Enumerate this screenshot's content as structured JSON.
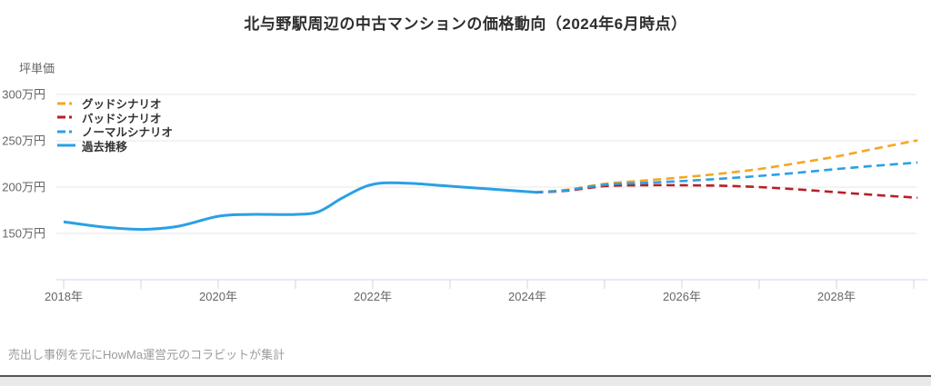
{
  "page": {
    "title": "北与野駅周辺の中古マンションの価格動向（2024年6月時点）",
    "source_note": "売出し事例を元にHowMa運営元のコラビットが集計"
  },
  "chart_data": {
    "type": "line",
    "title": "北与野駅周辺の中古マンションの価格動向（2024年6月時点）",
    "xlabel": "",
    "ylabel": "坪単価",
    "unit": "万円",
    "ylim": [
      150,
      300
    ],
    "xlim": [
      2018,
      2029
    ],
    "grid": "horizontal",
    "legend_position": "top-left",
    "y_ticks": [
      {
        "value": 300,
        "label": "300万円"
      },
      {
        "value": 250,
        "label": "250万円"
      },
      {
        "value": 200,
        "label": "200万円"
      },
      {
        "value": 150,
        "label": "150万円"
      }
    ],
    "x_ticks": [
      {
        "value": 2018,
        "label": "2018年"
      },
      {
        "value": 2019,
        "label": ""
      },
      {
        "value": 2020,
        "label": "2020年"
      },
      {
        "value": 2021,
        "label": ""
      },
      {
        "value": 2022,
        "label": "2022年"
      },
      {
        "value": 2023,
        "label": ""
      },
      {
        "value": 2024,
        "label": "2024年"
      },
      {
        "value": 2025,
        "label": ""
      },
      {
        "value": 2026,
        "label": "2026年"
      },
      {
        "value": 2027,
        "label": ""
      },
      {
        "value": 2028,
        "label": "2028年"
      },
      {
        "value": 2029,
        "label": ""
      }
    ],
    "series": [
      {
        "name": "グッドシナリオ",
        "color": "#F5A623",
        "style": "dashed",
        "x": [
          2024.1,
          2024.5,
          2025,
          2025.5,
          2026,
          2026.5,
          2027,
          2027.5,
          2028,
          2028.5,
          2029.05
        ],
        "values": [
          194.5,
          197,
          203.5,
          207,
          210.5,
          214.5,
          219.5,
          226,
          233,
          241.5,
          250.5
        ]
      },
      {
        "name": "バッドシナリオ",
        "color": "#B7202A",
        "style": "dashed",
        "x": [
          2024.1,
          2024.5,
          2025,
          2025.5,
          2026,
          2026.5,
          2027,
          2027.5,
          2028,
          2028.5,
          2029.05
        ],
        "values": [
          194.2,
          196,
          201,
          202,
          202,
          201.5,
          200,
          197.5,
          194.5,
          191.5,
          188.5
        ]
      },
      {
        "name": "ノーマルシナリオ",
        "color": "#2AA0E5",
        "style": "dashed",
        "x": [
          2024.1,
          2024.5,
          2025,
          2025.5,
          2026,
          2026.5,
          2027,
          2027.5,
          2028,
          2028.5,
          2029.05
        ],
        "values": [
          194.5,
          196.5,
          202.5,
          204.5,
          206.5,
          209,
          212,
          215.5,
          219.5,
          223,
          226.5
        ]
      },
      {
        "name": "過去推移",
        "color": "#2AA0E5",
        "style": "solid",
        "x": [
          2018,
          2018.4,
          2018.8,
          2019.1,
          2019.5,
          2020,
          2020.4,
          2021,
          2021.3,
          2021.6,
          2021.9,
          2022.15,
          2022.5,
          2023,
          2023.5,
          2024.1
        ],
        "values": [
          162.5,
          158,
          155,
          154.5,
          158,
          168.5,
          170.5,
          170.5,
          173.5,
          188,
          200.5,
          204.5,
          204,
          201,
          198,
          194.5
        ]
      }
    ]
  }
}
